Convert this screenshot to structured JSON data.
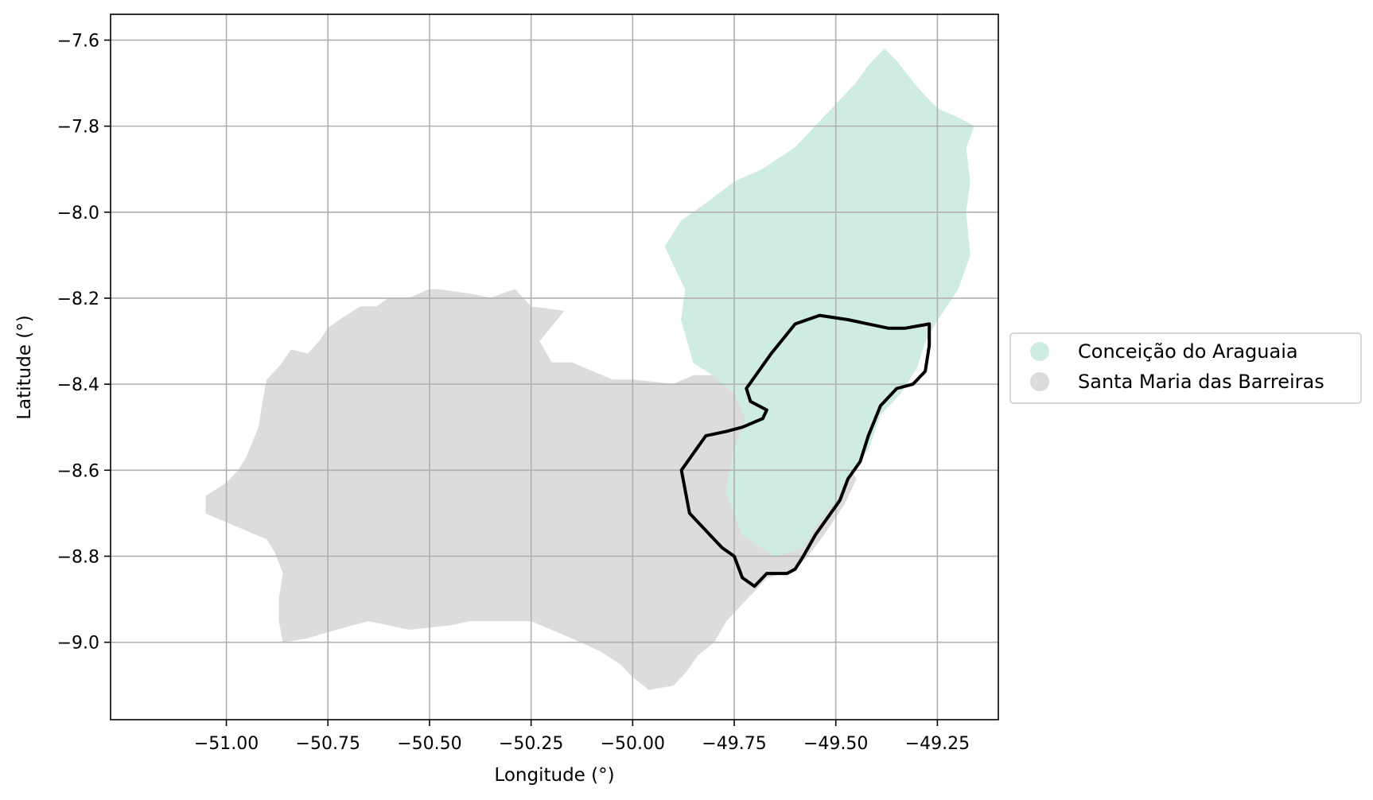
{
  "chart_data": {
    "type": "map",
    "xlabel": "Longitude (°)",
    "ylabel": "Latitude (°)",
    "xlim": [
      -51.285,
      -49.1
    ],
    "ylim": [
      -9.18,
      -7.54
    ],
    "x_ticks": [
      {
        "value": -51.0,
        "label": "−51.00"
      },
      {
        "value": -50.75,
        "label": "−50.75"
      },
      {
        "value": -50.5,
        "label": "−50.50"
      },
      {
        "value": -50.25,
        "label": "−50.25"
      },
      {
        "value": -50.0,
        "label": "−50.00"
      },
      {
        "value": -49.75,
        "label": "−49.75"
      },
      {
        "value": -49.5,
        "label": "−49.50"
      },
      {
        "value": -49.25,
        "label": "−49.25"
      }
    ],
    "y_ticks": [
      {
        "value": -7.6,
        "label": "−7.6"
      },
      {
        "value": -7.8,
        "label": "−7.8"
      },
      {
        "value": -8.0,
        "label": "−8.0"
      },
      {
        "value": -8.2,
        "label": "−8.2"
      },
      {
        "value": -8.4,
        "label": "−8.4"
      },
      {
        "value": -8.6,
        "label": "−8.6"
      },
      {
        "value": -8.8,
        "label": "−8.8"
      },
      {
        "value": -9.0,
        "label": "−9.0"
      }
    ],
    "grid": true,
    "legend_position": "right, outside plot",
    "series": [
      {
        "name": "Santa Maria das Barreiras",
        "color": "#dcdcdc",
        "polygon": [
          [
            -50.17,
            -8.23
          ],
          [
            -50.25,
            -8.22
          ],
          [
            -50.29,
            -8.18
          ],
          [
            -50.35,
            -8.2
          ],
          [
            -50.4,
            -8.19
          ],
          [
            -50.48,
            -8.18
          ],
          [
            -50.5,
            -8.18
          ],
          [
            -50.55,
            -8.2
          ],
          [
            -50.6,
            -8.2
          ],
          [
            -50.63,
            -8.22
          ],
          [
            -50.67,
            -8.22
          ],
          [
            -50.72,
            -8.25
          ],
          [
            -50.75,
            -8.27
          ],
          [
            -50.77,
            -8.3
          ],
          [
            -50.8,
            -8.33
          ],
          [
            -50.84,
            -8.32
          ],
          [
            -50.87,
            -8.36
          ],
          [
            -50.9,
            -8.39
          ],
          [
            -50.91,
            -8.44
          ],
          [
            -50.92,
            -8.5
          ],
          [
            -50.95,
            -8.57
          ],
          [
            -50.97,
            -8.6
          ],
          [
            -51.0,
            -8.63
          ],
          [
            -51.05,
            -8.66
          ],
          [
            -51.05,
            -8.7
          ],
          [
            -51.0,
            -8.72
          ],
          [
            -50.95,
            -8.74
          ],
          [
            -50.9,
            -8.76
          ],
          [
            -50.88,
            -8.79
          ],
          [
            -50.86,
            -8.84
          ],
          [
            -50.87,
            -8.9
          ],
          [
            -50.87,
            -8.95
          ],
          [
            -50.86,
            -9.0
          ],
          [
            -50.8,
            -8.99
          ],
          [
            -50.73,
            -8.97
          ],
          [
            -50.65,
            -8.95
          ],
          [
            -50.6,
            -8.96
          ],
          [
            -50.55,
            -8.97
          ],
          [
            -50.45,
            -8.96
          ],
          [
            -50.4,
            -8.95
          ],
          [
            -50.35,
            -8.95
          ],
          [
            -50.25,
            -8.95
          ],
          [
            -50.2,
            -8.97
          ],
          [
            -50.15,
            -8.99
          ],
          [
            -50.08,
            -9.02
          ],
          [
            -50.03,
            -9.05
          ],
          [
            -50.0,
            -9.08
          ],
          [
            -49.96,
            -9.11
          ],
          [
            -49.9,
            -9.1
          ],
          [
            -49.87,
            -9.07
          ],
          [
            -49.84,
            -9.03
          ],
          [
            -49.8,
            -9.0
          ],
          [
            -49.77,
            -8.95
          ],
          [
            -49.72,
            -8.9
          ],
          [
            -49.67,
            -8.85
          ],
          [
            -49.6,
            -8.83
          ],
          [
            -49.57,
            -8.8
          ],
          [
            -49.53,
            -8.75
          ],
          [
            -49.48,
            -8.68
          ],
          [
            -49.45,
            -8.62
          ],
          [
            -49.5,
            -8.55
          ],
          [
            -49.55,
            -8.45
          ],
          [
            -49.58,
            -8.39
          ],
          [
            -49.62,
            -8.32
          ],
          [
            -49.67,
            -8.28
          ],
          [
            -49.7,
            -8.28
          ],
          [
            -49.73,
            -8.32
          ],
          [
            -49.75,
            -8.36
          ],
          [
            -49.8,
            -8.38
          ],
          [
            -49.85,
            -8.38
          ],
          [
            -49.9,
            -8.4
          ],
          [
            -50.0,
            -8.39
          ],
          [
            -50.05,
            -8.39
          ],
          [
            -50.1,
            -8.37
          ],
          [
            -50.15,
            -8.35
          ],
          [
            -50.2,
            -8.35
          ],
          [
            -50.23,
            -8.3
          ]
        ]
      },
      {
        "name": "Conceição do Araguaia",
        "color": "#cfece0",
        "polygon": [
          [
            -49.38,
            -7.62
          ],
          [
            -49.35,
            -7.65
          ],
          [
            -49.3,
            -7.71
          ],
          [
            -49.25,
            -7.76
          ],
          [
            -49.2,
            -7.78
          ],
          [
            -49.16,
            -7.8
          ],
          [
            -49.18,
            -7.85
          ],
          [
            -49.17,
            -7.93
          ],
          [
            -49.18,
            -8.0
          ],
          [
            -49.17,
            -8.1
          ],
          [
            -49.2,
            -8.18
          ],
          [
            -49.25,
            -8.25
          ],
          [
            -49.28,
            -8.3
          ],
          [
            -49.3,
            -8.36
          ],
          [
            -49.34,
            -8.42
          ],
          [
            -49.39,
            -8.47
          ],
          [
            -49.42,
            -8.55
          ],
          [
            -49.47,
            -8.62
          ],
          [
            -49.5,
            -8.67
          ],
          [
            -49.55,
            -8.73
          ],
          [
            -49.58,
            -8.78
          ],
          [
            -49.65,
            -8.8
          ],
          [
            -49.73,
            -8.75
          ],
          [
            -49.77,
            -8.65
          ],
          [
            -49.75,
            -8.55
          ],
          [
            -49.72,
            -8.48
          ],
          [
            -49.75,
            -8.42
          ],
          [
            -49.8,
            -8.38
          ],
          [
            -49.85,
            -8.35
          ],
          [
            -49.88,
            -8.25
          ],
          [
            -49.87,
            -8.18
          ],
          [
            -49.9,
            -8.12
          ],
          [
            -49.92,
            -8.08
          ],
          [
            -49.88,
            -8.02
          ],
          [
            -49.82,
            -7.98
          ],
          [
            -49.75,
            -7.93
          ],
          [
            -49.68,
            -7.9
          ],
          [
            -49.6,
            -7.85
          ],
          [
            -49.55,
            -7.8
          ],
          [
            -49.5,
            -7.75
          ],
          [
            -49.45,
            -7.7
          ],
          [
            -49.42,
            -7.66
          ]
        ]
      }
    ],
    "outline": {
      "color": "#000000",
      "polygon": [
        [
          -49.54,
          -8.24
        ],
        [
          -49.47,
          -8.25
        ],
        [
          -49.42,
          -8.26
        ],
        [
          -49.37,
          -8.27
        ],
        [
          -49.33,
          -8.27
        ],
        [
          -49.27,
          -8.26
        ],
        [
          -49.27,
          -8.31
        ],
        [
          -49.28,
          -8.37
        ],
        [
          -49.31,
          -8.4
        ],
        [
          -49.35,
          -8.41
        ],
        [
          -49.39,
          -8.45
        ],
        [
          -49.42,
          -8.52
        ],
        [
          -49.44,
          -8.58
        ],
        [
          -49.47,
          -8.62
        ],
        [
          -49.49,
          -8.67
        ],
        [
          -49.52,
          -8.71
        ],
        [
          -49.55,
          -8.75
        ],
        [
          -49.58,
          -8.8
        ],
        [
          -49.6,
          -8.83
        ],
        [
          -49.62,
          -8.84
        ],
        [
          -49.67,
          -8.84
        ],
        [
          -49.7,
          -8.87
        ],
        [
          -49.73,
          -8.85
        ],
        [
          -49.75,
          -8.8
        ],
        [
          -49.78,
          -8.78
        ],
        [
          -49.83,
          -8.73
        ],
        [
          -49.86,
          -8.7
        ],
        [
          -49.87,
          -8.65
        ],
        [
          -49.88,
          -8.6
        ],
        [
          -49.85,
          -8.56
        ],
        [
          -49.82,
          -8.52
        ],
        [
          -49.77,
          -8.51
        ],
        [
          -49.73,
          -8.5
        ],
        [
          -49.68,
          -8.48
        ],
        [
          -49.67,
          -8.46
        ],
        [
          -49.71,
          -8.44
        ],
        [
          -49.72,
          -8.41
        ],
        [
          -49.66,
          -8.33
        ],
        [
          -49.6,
          -8.26
        ]
      ]
    }
  },
  "legend": {
    "items": [
      {
        "label": "Conceição do Araguaia",
        "color": "#cfece0"
      },
      {
        "label": "Santa Maria das Barreiras",
        "color": "#dcdcdc"
      }
    ]
  }
}
